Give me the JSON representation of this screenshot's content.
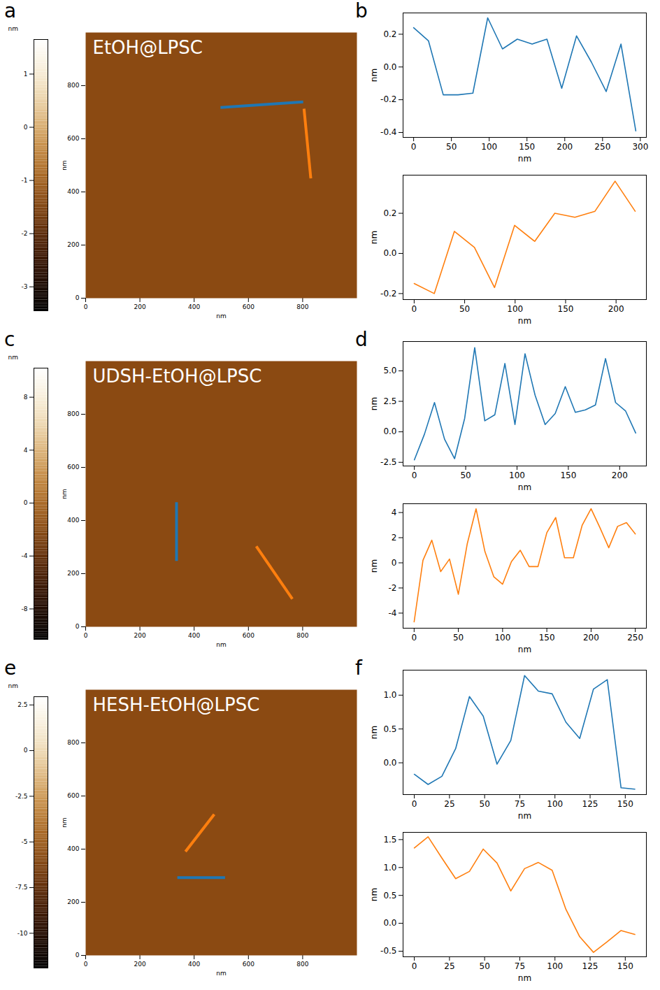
{
  "chart_data": [
    {
      "type": "image",
      "panel": "a",
      "title": "EtOH@LPSC",
      "x_label": "nm",
      "y_label": "nm",
      "xlim": [
        0,
        1000
      ],
      "ylim": [
        0,
        1000
      ],
      "xticks": [
        0,
        200,
        400,
        600,
        800
      ],
      "yticks": [
        0,
        200,
        400,
        600,
        800
      ],
      "colorbar": {
        "label": "nm",
        "range": [
          -3.45,
          1.65
        ],
        "ticks": [
          1,
          0,
          -1,
          -2,
          -3
        ]
      },
      "profiles": [
        {
          "color": "#1f77b4",
          "x": [
            497,
            802
          ],
          "y": [
            718,
            739
          ]
        },
        {
          "color": "#ff7f0e",
          "x": [
            805,
            830
          ],
          "y": [
            713,
            451
          ]
        }
      ]
    },
    {
      "type": "image",
      "panel": "c",
      "title": "UDSH-EtOH@LPSC",
      "x_label": "nm",
      "y_label": "nm",
      "xlim": [
        0,
        1000
      ],
      "ylim": [
        0,
        1000
      ],
      "xticks": [
        0,
        200,
        400,
        600,
        800
      ],
      "yticks": [
        0,
        200,
        400,
        600,
        800
      ],
      "colorbar": {
        "label": "nm",
        "range": [
          -10.3,
          10.2
        ],
        "ticks": [
          8,
          4,
          0,
          -4,
          -8
        ]
      },
      "profiles": [
        {
          "color": "#1f77b4",
          "x": [
            335,
            335
          ],
          "y": [
            469,
            248
          ]
        },
        {
          "color": "#ff7f0e",
          "x": [
            629,
            762
          ],
          "y": [
            303,
            105
          ]
        }
      ]
    },
    {
      "type": "image",
      "panel": "e",
      "title": "HESH-EtOH@LPSC",
      "x_label": "nm",
      "y_label": "nm",
      "xlim": [
        0,
        1000
      ],
      "ylim": [
        0,
        1000
      ],
      "xticks": [
        0,
        200,
        400,
        600,
        800
      ],
      "yticks": [
        0,
        200,
        400,
        600,
        800
      ],
      "colorbar": {
        "label": "nm",
        "range": [
          -11.9,
          2.95
        ],
        "ticks": [
          2.5,
          0,
          -2.5,
          -5,
          -7.5,
          -10
        ]
      },
      "profiles": [
        {
          "color": "#1f77b4",
          "x": [
            338,
            514
          ],
          "y": [
            293,
            293
          ]
        },
        {
          "color": "#ff7f0e",
          "x": [
            368,
            474
          ],
          "y": [
            391,
            531
          ]
        }
      ]
    },
    {
      "type": "line",
      "panel": "b",
      "x_label": "nm",
      "y_label": "nm",
      "color": "#1f77b4",
      "x": [
        0,
        19.6,
        39.2,
        58.8,
        78.4,
        98,
        117.6,
        137.2,
        156.8,
        176.4,
        196,
        215.6,
        235.2,
        254.8,
        274.4,
        294
      ],
      "values": [
        0.24,
        0.16,
        -0.17,
        -0.17,
        -0.16,
        0.3,
        0.11,
        0.17,
        0.14,
        0.17,
        -0.13,
        0.19,
        0.03,
        -0.15,
        0.14,
        -0.39
      ],
      "xlim": [
        -14,
        308
      ],
      "ylim": [
        -0.43,
        0.33
      ],
      "xticks": [
        0,
        50,
        100,
        150,
        200,
        250,
        300
      ],
      "yticks": [
        -0.4,
        -0.2,
        {
          "value": 0,
          "label": "0.0"
        },
        0.2
      ]
    },
    {
      "type": "line",
      "x_label": "nm",
      "y_label": "nm",
      "color": "#ff7f0e",
      "x": [
        0,
        19.9,
        39.8,
        59.7,
        79.6,
        99.5,
        119.4,
        139.3,
        159.2,
        179.1,
        199,
        218.9
      ],
      "values": [
        -0.15,
        -0.2,
        0.11,
        0.03,
        -0.17,
        0.14,
        0.06,
        0.2,
        0.18,
        0.21,
        0.36,
        0.21
      ],
      "xlim": [
        -11,
        230
      ],
      "ylim": [
        -0.23,
        0.39
      ],
      "xticks": [
        0,
        50,
        100,
        150,
        200
      ],
      "yticks": [
        -0.2,
        {
          "value": 0,
          "label": "0.0"
        },
        0.2
      ]
    },
    {
      "type": "line",
      "panel": "d",
      "x_label": "nm",
      "y_label": "nm",
      "color": "#1f77b4",
      "x": [
        0,
        9.8,
        19.6,
        29.4,
        39.2,
        49,
        58.8,
        68.6,
        78.4,
        88.2,
        98,
        107.8,
        117.6,
        127.4,
        137.2,
        147,
        156.8,
        166.6,
        176.4,
        186.2,
        196,
        205.8,
        215.6
      ],
      "values": [
        -2.3,
        -0.2,
        2.4,
        -0.6,
        -2.2,
        1.1,
        6.9,
        0.9,
        1.4,
        5.6,
        0.6,
        6.4,
        3.0,
        0.6,
        1.5,
        3.7,
        1.6,
        1.8,
        2.2,
        6.0,
        2.4,
        1.7,
        -0.1
      ],
      "xlim": [
        -11,
        226
      ],
      "ylim": [
        -2.8,
        7.4
      ],
      "xticks": [
        0,
        50,
        100,
        150,
        200
      ],
      "yticks": [
        -2.5,
        {
          "value": 0,
          "label": "0.0"
        },
        2.5,
        {
          "value": 5,
          "label": "5.0"
        }
      ]
    },
    {
      "type": "line",
      "x_label": "nm",
      "y_label": "nm",
      "color": "#ff7f0e",
      "x": [
        0,
        10,
        20,
        30,
        40,
        50,
        60,
        70,
        80,
        90,
        100,
        110,
        120,
        130,
        140,
        150,
        160,
        170,
        180,
        190,
        200,
        210,
        220,
        230,
        240,
        250
      ],
      "values": [
        -4.7,
        0.2,
        1.8,
        -0.7,
        0.3,
        -2.5,
        1.5,
        4.3,
        0.9,
        -1.1,
        -1.7,
        0.1,
        1.0,
        -0.3,
        -0.3,
        2.4,
        3.6,
        0.4,
        0.4,
        3.0,
        4.3,
        2.8,
        1.2,
        2.9,
        3.2,
        2.3
      ],
      "xlim": [
        -12.5,
        262.5
      ],
      "ylim": [
        -5.2,
        4.7
      ],
      "xticks": [
        0,
        50,
        100,
        150,
        200,
        250
      ],
      "yticks": [
        -4,
        -2,
        0,
        2,
        4
      ]
    },
    {
      "type": "line",
      "panel": "f",
      "x_label": "nm",
      "y_label": "nm",
      "color": "#1f77b4",
      "x": [
        0,
        9.8,
        19.6,
        29.4,
        39.2,
        49,
        58.8,
        68.6,
        78.4,
        88.2,
        98,
        107.8,
        117.6,
        127.4,
        137.2,
        147,
        156.8
      ],
      "values": [
        -0.17,
        -0.32,
        -0.2,
        0.21,
        0.98,
        0.69,
        -0.02,
        0.33,
        1.29,
        1.06,
        1.02,
        0.6,
        0.36,
        1.09,
        1.23,
        -0.37,
        -0.39
      ],
      "xlim": [
        -8,
        165
      ],
      "ylim": [
        -0.47,
        1.37
      ],
      "xticks": [
        0,
        25,
        50,
        75,
        100,
        125,
        150
      ],
      "yticks": [
        {
          "value": 0,
          "label": "0.0"
        },
        0.5,
        {
          "value": 1,
          "label": "1.0"
        }
      ]
    },
    {
      "type": "line",
      "x_label": "nm",
      "y_label": "nm",
      "color": "#ff7f0e",
      "x": [
        0,
        9.8,
        19.6,
        29.4,
        39.2,
        49,
        58.8,
        68.6,
        78.4,
        88.2,
        98,
        107.8,
        117.6,
        127.4,
        137.2,
        147,
        156.8
      ],
      "values": [
        1.35,
        1.55,
        1.17,
        0.8,
        0.93,
        1.33,
        1.08,
        0.58,
        0.98,
        1.09,
        0.95,
        0.25,
        -0.24,
        -0.52,
        -0.33,
        -0.13,
        -0.2
      ],
      "xlim": [
        -8,
        165
      ],
      "ylim": [
        -0.6,
        1.63
      ],
      "xticks": [
        0,
        25,
        50,
        75,
        100,
        125,
        150
      ],
      "yticks": [
        -0.5,
        {
          "value": 0,
          "label": "0.0"
        },
        0.5,
        {
          "value": 1,
          "label": "1.0"
        },
        1.5
      ]
    }
  ]
}
